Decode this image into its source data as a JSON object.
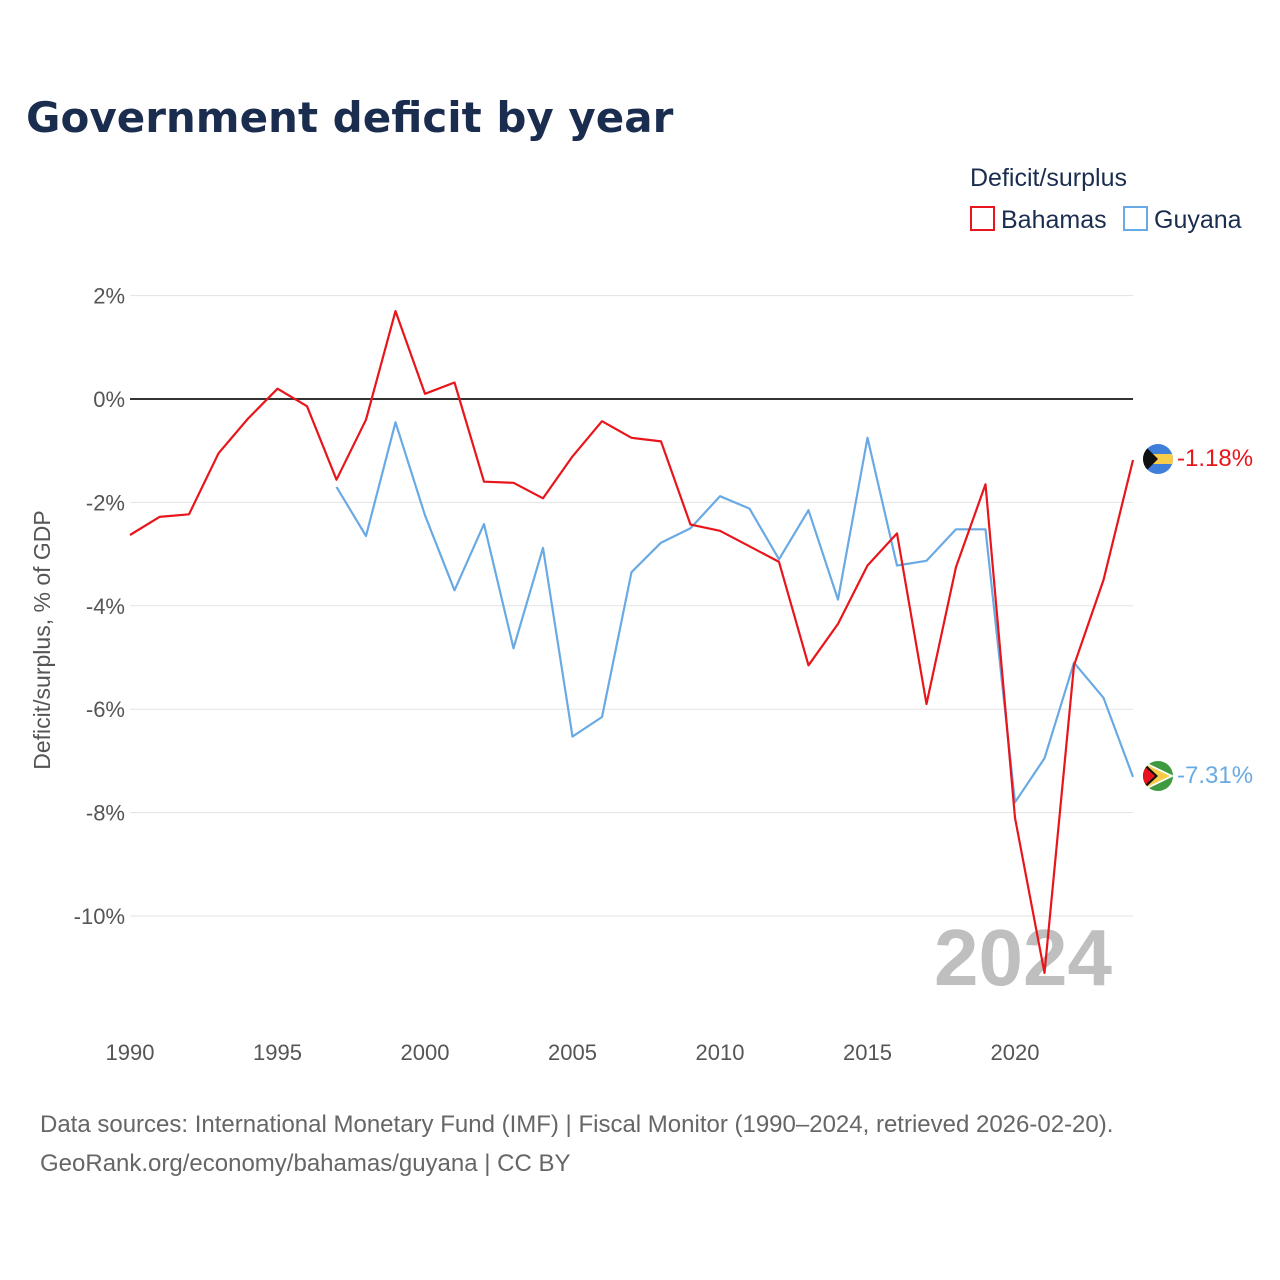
{
  "title": "Government deficit by year",
  "legend": {
    "title": "Deficit/surplus",
    "items": [
      {
        "label": "Bahamas",
        "color": "#e8151b"
      },
      {
        "label": "Guyana",
        "color": "#6aaae4"
      }
    ]
  },
  "watermark_year": "2024",
  "end_labels": {
    "bahamas": "-1.18%",
    "guyana": "-7.31%"
  },
  "source_lines": [
    "Data sources: International Monetary Fund (IMF) | Fiscal Monitor (1990–2024, retrieved 2026-02-20).",
    "GeoRank.org/economy/bahamas/guyana | CC BY"
  ],
  "chart_data": {
    "type": "line",
    "title": "Government deficit by year",
    "xlabel": "",
    "ylabel": "Deficit/surplus, % of GDP",
    "xlim": [
      1990,
      2024
    ],
    "ylim": [
      -12,
      2.5
    ],
    "x_ticks": [
      1990,
      1995,
      2000,
      2005,
      2010,
      2015,
      2020
    ],
    "y_ticks": [
      2,
      0,
      -2,
      -4,
      -6,
      -8,
      -10
    ],
    "y_tick_labels": [
      "2%",
      "0%",
      "-2%",
      "-4%",
      "-6%",
      "-8%",
      "-10%"
    ],
    "x_tick_labels": [
      "1990",
      "1995",
      "2000",
      "2005",
      "2010",
      "2015",
      "2020"
    ],
    "series": [
      {
        "name": "Bahamas",
        "color": "#e8151b",
        "x": [
          1990,
          1991,
          1992,
          1993,
          1994,
          1995,
          1996,
          1997,
          1998,
          1999,
          2000,
          2001,
          2002,
          2003,
          2004,
          2005,
          2006,
          2007,
          2008,
          2009,
          2010,
          2011,
          2012,
          2013,
          2014,
          2015,
          2016,
          2017,
          2018,
          2019,
          2020,
          2021,
          2022,
          2023,
          2024
        ],
        "values": [
          -2.63,
          -2.28,
          -2.23,
          -1.05,
          -0.38,
          0.2,
          -0.14,
          -1.56,
          -0.4,
          1.7,
          0.1,
          0.32,
          -1.6,
          -1.62,
          -1.92,
          -1.11,
          -0.43,
          -0.75,
          -0.82,
          -2.43,
          -2.55,
          -2.85,
          -3.15,
          -5.15,
          -4.35,
          -3.22,
          -2.6,
          -5.9,
          -3.25,
          -1.65,
          -8.1,
          -11.1,
          -5.15,
          -3.5,
          -1.18
        ]
      },
      {
        "name": "Guyana",
        "color": "#6aaae4",
        "x": [
          1997,
          1998,
          1999,
          2000,
          2001,
          2002,
          2003,
          2004,
          2005,
          2006,
          2007,
          2008,
          2009,
          2010,
          2011,
          2012,
          2013,
          2014,
          2015,
          2016,
          2017,
          2018,
          2019,
          2020,
          2021,
          2022,
          2023,
          2024
        ],
        "values": [
          -1.7,
          -2.65,
          -0.45,
          -2.25,
          -3.7,
          -2.42,
          -4.82,
          -2.88,
          -6.53,
          -6.15,
          -3.35,
          -2.78,
          -2.5,
          -1.88,
          -2.12,
          -3.1,
          -2.15,
          -3.88,
          -0.75,
          -3.22,
          -3.13,
          -2.52,
          -2.52,
          -7.8,
          -6.95,
          -5.1,
          -5.78,
          -7.31
        ]
      }
    ]
  }
}
